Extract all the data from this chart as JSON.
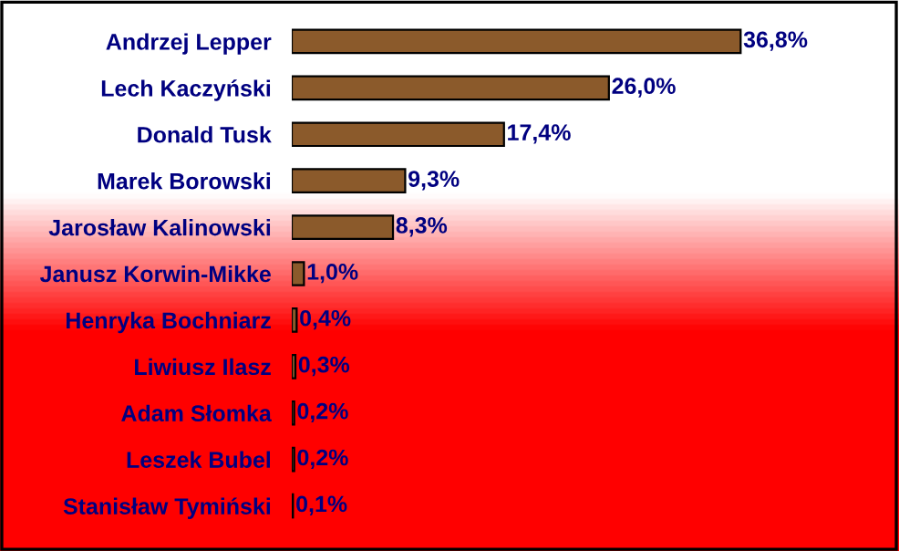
{
  "chart_data": {
    "type": "bar",
    "orientation": "horizontal",
    "categories": [
      "Andrzej Lepper",
      "Lech Kaczyński",
      "Donald Tusk",
      "Marek Borowski",
      "Jarosław Kalinowski",
      "Janusz Korwin-Mikke",
      "Henryka Bochniarz",
      "Liwiusz Ilasz",
      "Adam Słomka",
      "Leszek Bubel",
      "Stanisław Tymiński"
    ],
    "values": [
      36.8,
      26.0,
      17.4,
      9.3,
      8.3,
      1.0,
      0.4,
      0.3,
      0.2,
      0.2,
      0.1
    ],
    "value_labels": [
      "36,8%",
      "26,0%",
      "17,4%",
      "9,3%",
      "8,3%",
      "1,0%",
      "0,4%",
      "0,3%",
      "0,2%",
      "0,2%",
      "0,1%"
    ],
    "color": "#8b5a2b",
    "tick_labels": "y",
    "grid": false,
    "legend": false
  }
}
